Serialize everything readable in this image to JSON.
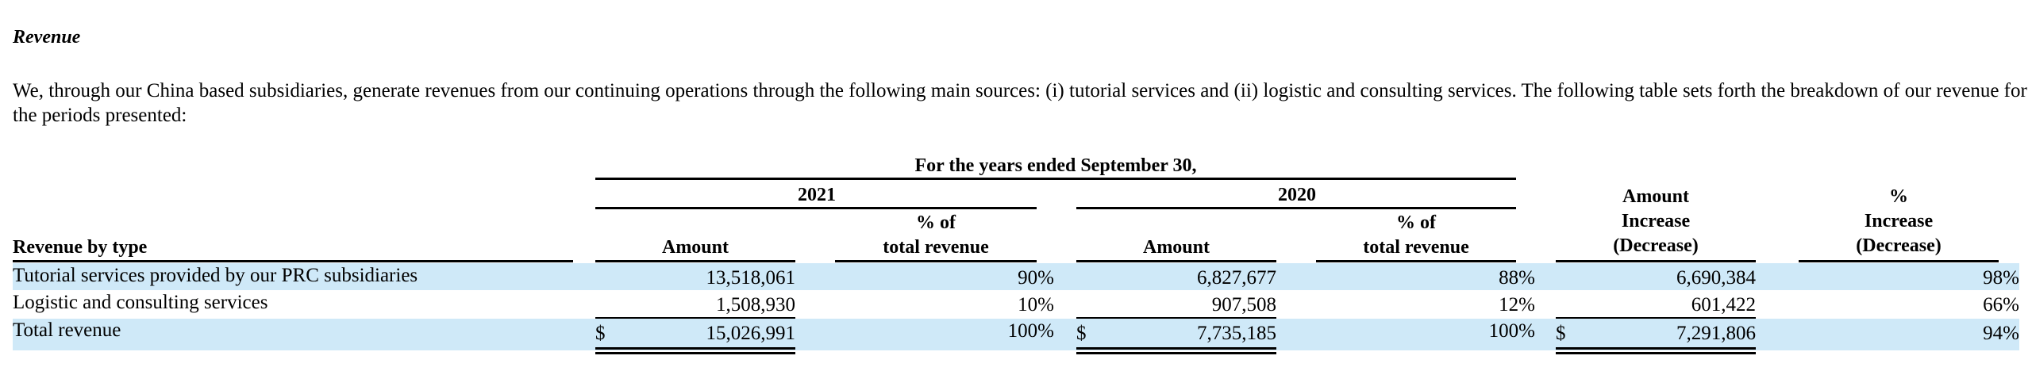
{
  "section": {
    "heading": "Revenue",
    "paragraph": "We, through our China based subsidiaries, generate revenues from our continuing operations through the following main sources: (i) tutorial services and (ii) logistic and consulting services. The following table sets forth the breakdown of our revenue for the periods presented:"
  },
  "table": {
    "period_header": "For the years ended September 30,",
    "year_2021": "2021",
    "year_2020": "2020",
    "col_label": "Revenue by type",
    "col_amount": "Amount",
    "col_pct_line1": "% of",
    "col_pct_line2": "total revenue",
    "col_change_amount": [
      "Amount",
      "Increase",
      "(Decrease)"
    ],
    "col_change_pct": [
      "%",
      "Increase",
      "(Decrease)"
    ],
    "currency_symbol": "$",
    "rows": [
      {
        "label": "Tutorial services provided by our PRC subsidiaries",
        "amount_2021": "13,518,061",
        "pct_2021": "90%",
        "amount_2020": "6,827,677",
        "pct_2020": "88%",
        "change_amount": "6,690,384",
        "change_pct": "98%"
      },
      {
        "label": "Logistic and consulting services",
        "amount_2021": "1,508,930",
        "pct_2021": "10%",
        "amount_2020": "907,508",
        "pct_2020": "12%",
        "change_amount": "601,422",
        "change_pct": "66%"
      },
      {
        "label": "Total revenue",
        "amount_2021": "15,026,991",
        "pct_2021": "100%",
        "amount_2020": "7,735,185",
        "pct_2020": "100%",
        "change_amount": "7,291,806",
        "change_pct": "94%"
      }
    ]
  },
  "colors": {
    "row_highlight": "#cfe9f8",
    "rule": "#000000"
  }
}
